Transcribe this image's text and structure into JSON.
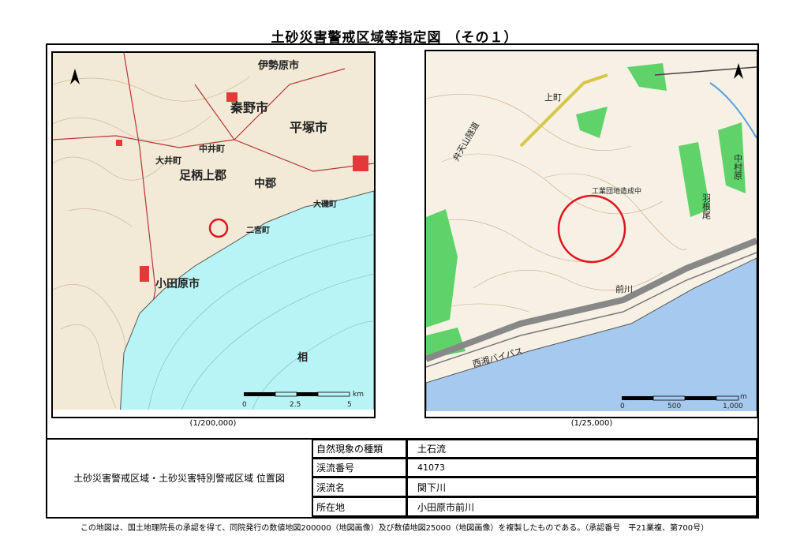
{
  "title": "土砂災害警戒区域等指定図 （その１）",
  "left_map": {
    "scale_caption": "(1/200,000)",
    "scale_bar": {
      "ticks": [
        "0",
        "2.5",
        "5"
      ],
      "unit": "km"
    },
    "labels": [
      "伊勢原市",
      "秦野市",
      "平塚市",
      "足柄上郡",
      "中郡",
      "大磯町",
      "二宮町",
      "小田原市",
      "中井町",
      "大井町",
      "相"
    ],
    "colors": {
      "land": "#f2ead6",
      "sea": "#b8f3f6",
      "marker": "#e0141e"
    }
  },
  "right_map": {
    "scale_caption": "(1/25,000)",
    "scale_bar": {
      "ticks": [
        "0",
        "500",
        "1,000"
      ],
      "unit": "m"
    },
    "labels": [
      "上町",
      "工業団地造成中",
      "前川",
      "西湘バイパス",
      "中村原",
      "羽根尾",
      "弁天山隧道"
    ],
    "colors": {
      "land": "#f6f1e4",
      "sea": "#a6c9ef",
      "forest": "#5fd36a",
      "marker": "#e0141e"
    }
  },
  "table": {
    "heading": "土砂災害警戒区域・土砂災害特別警戒区域 位置図",
    "rows": [
      {
        "label": "自然現象の種類",
        "value": "土石流"
      },
      {
        "label": "渓流番号",
        "value": "41073"
      },
      {
        "label": "渓流名",
        "value": "関下川"
      },
      {
        "label": "所在地",
        "value": "小田原市前川"
      }
    ]
  },
  "footer": "この地図は、国土地理院長の承認を得て、同院発行の数値地図200000（地図画像）及び数値地図25000（地図画像）を複製したものである。（承認番号　平21業複、第700号）"
}
